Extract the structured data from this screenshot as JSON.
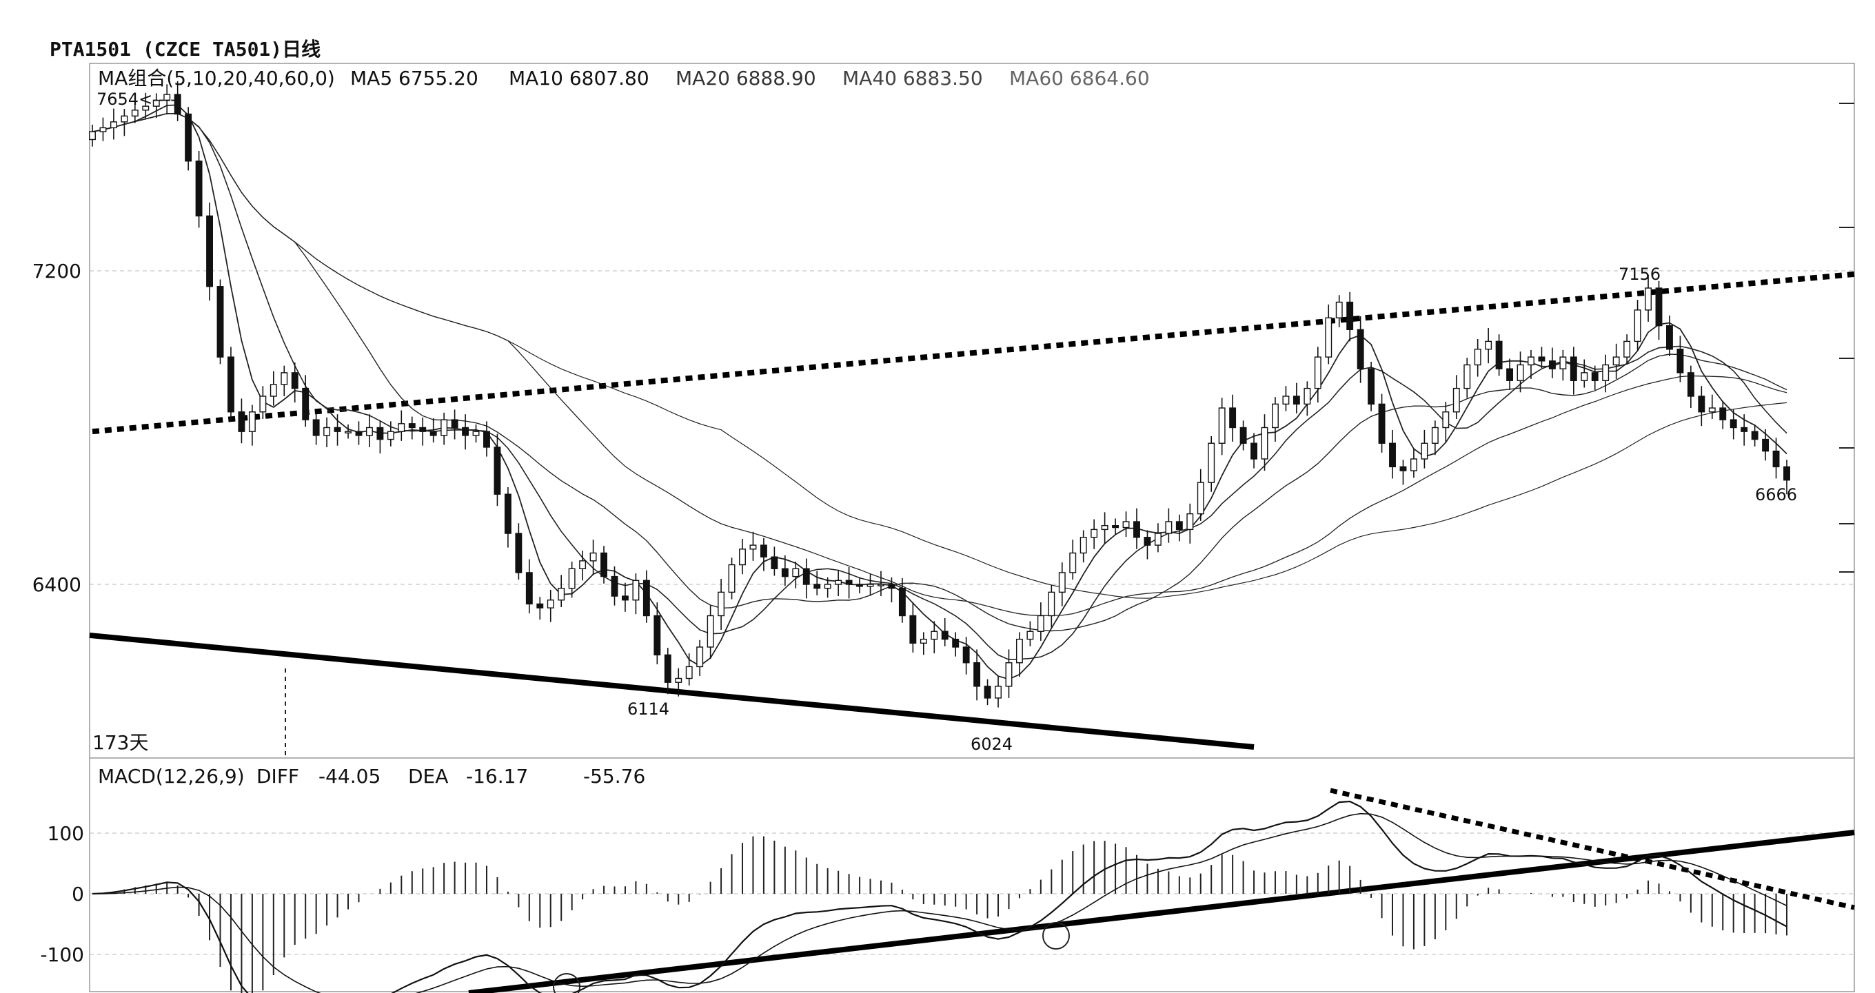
{
  "title": "PTA1501 (CZCE TA501)日线",
  "ma_legend": {
    "name": "MA组合(5,10,20,40,60,0)",
    "ma5": "MA5 6755.20",
    "ma10": "MA10 6807.80",
    "ma20": "MA20 6888.90",
    "ma40": "MA40 6883.50",
    "ma60": "MA60 6864.60"
  },
  "macd_legend": {
    "name": "MACD(12,26,9)",
    "diff_label": "DIFF",
    "diff_value": "-44.05",
    "dea_label": "DEA",
    "dea_value": "-16.17",
    "macd_value": "-55.76"
  },
  "annotations": {
    "high": "7654<----",
    "low1": "6114",
    "low2": "6024",
    "peak2": "7156",
    "last": "6666",
    "days": "173天"
  },
  "colors": {
    "background": "#ffffff",
    "candle": "#111111",
    "grid": "#c8c8c8",
    "ma_line": "#222222",
    "trendline": "#000000"
  },
  "chart_data": [
    {
      "type": "candlestick",
      "title": "PTA1501 (CZCE TA501)日线",
      "ylim": [
        6000,
        7800
      ],
      "y_ticks": [
        7200,
        6400
      ],
      "grid": true,
      "key_points": [
        {
          "label": "7654",
          "value": 7654
        },
        {
          "label": "6114",
          "value": 6114
        },
        {
          "label": "6024",
          "value": 6024
        },
        {
          "label": "7156",
          "value": 7156
        },
        {
          "label": "6666",
          "value": 6666
        }
      ],
      "close": [
        7555,
        7565,
        7580,
        7595,
        7610,
        7620,
        7635,
        7650,
        7600,
        7480,
        7340,
        7160,
        6980,
        6840,
        6790,
        6840,
        6880,
        6910,
        6940,
        6900,
        6820,
        6780,
        6800,
        6790,
        6790,
        6780,
        6800,
        6770,
        6790,
        6810,
        6800,
        6790,
        6780,
        6820,
        6800,
        6780,
        6790,
        6750,
        6630,
        6530,
        6430,
        6350,
        6340,
        6360,
        6390,
        6440,
        6460,
        6480,
        6420,
        6370,
        6360,
        6410,
        6320,
        6220,
        6150,
        6160,
        6190,
        6240,
        6320,
        6380,
        6450,
        6490,
        6500,
        6470,
        6440,
        6420,
        6440,
        6400,
        6390,
        6400,
        6410,
        6400,
        6395,
        6400,
        6400,
        6390,
        6320,
        6250,
        6260,
        6280,
        6260,
        6240,
        6200,
        6140,
        6110,
        6140,
        6200,
        6260,
        6280,
        6320,
        6380,
        6430,
        6480,
        6520,
        6540,
        6550,
        6545,
        6560,
        6520,
        6500,
        6530,
        6560,
        6540,
        6580,
        6660,
        6760,
        6850,
        6800,
        6760,
        6720,
        6800,
        6860,
        6880,
        6860,
        6900,
        6980,
        7080,
        7120,
        7050,
        6950,
        6860,
        6760,
        6700,
        6690,
        6720,
        6760,
        6800,
        6840,
        6900,
        6960,
        7000,
        7020,
        6950,
        6920,
        6960,
        6980,
        6970,
        6950,
        6980,
        6920,
        6940,
        6920,
        6960,
        6980,
        7020,
        7100,
        7156,
        7060,
        7000,
        6940,
        6880,
        6840,
        6850,
        6820,
        6800,
        6790,
        6770,
        6740,
        6700,
        6666
      ],
      "ma_lines": [
        {
          "name": "MA5",
          "last": 6755.2
        },
        {
          "name": "MA10",
          "last": 6807.8
        },
        {
          "name": "MA20",
          "last": 6888.9
        },
        {
          "name": "MA40",
          "last": 6883.5
        },
        {
          "name": "MA60",
          "last": 6864.6
        }
      ],
      "trendlines": [
        {
          "style": "dotted",
          "from": [
            0,
            6790
          ],
          "to": [
            173,
            7210
          ]
        },
        {
          "style": "solid",
          "from": [
            0,
            6270
          ],
          "to": [
            109,
            5985
          ]
        }
      ]
    },
    {
      "type": "bar",
      "title": "MACD(12,26,9)",
      "ylim": [
        -200,
        160
      ],
      "y_ticks": [
        100,
        0,
        -100
      ],
      "grid": true,
      "diff": -44.05,
      "dea": -16.17,
      "macd": -55.76
    }
  ]
}
